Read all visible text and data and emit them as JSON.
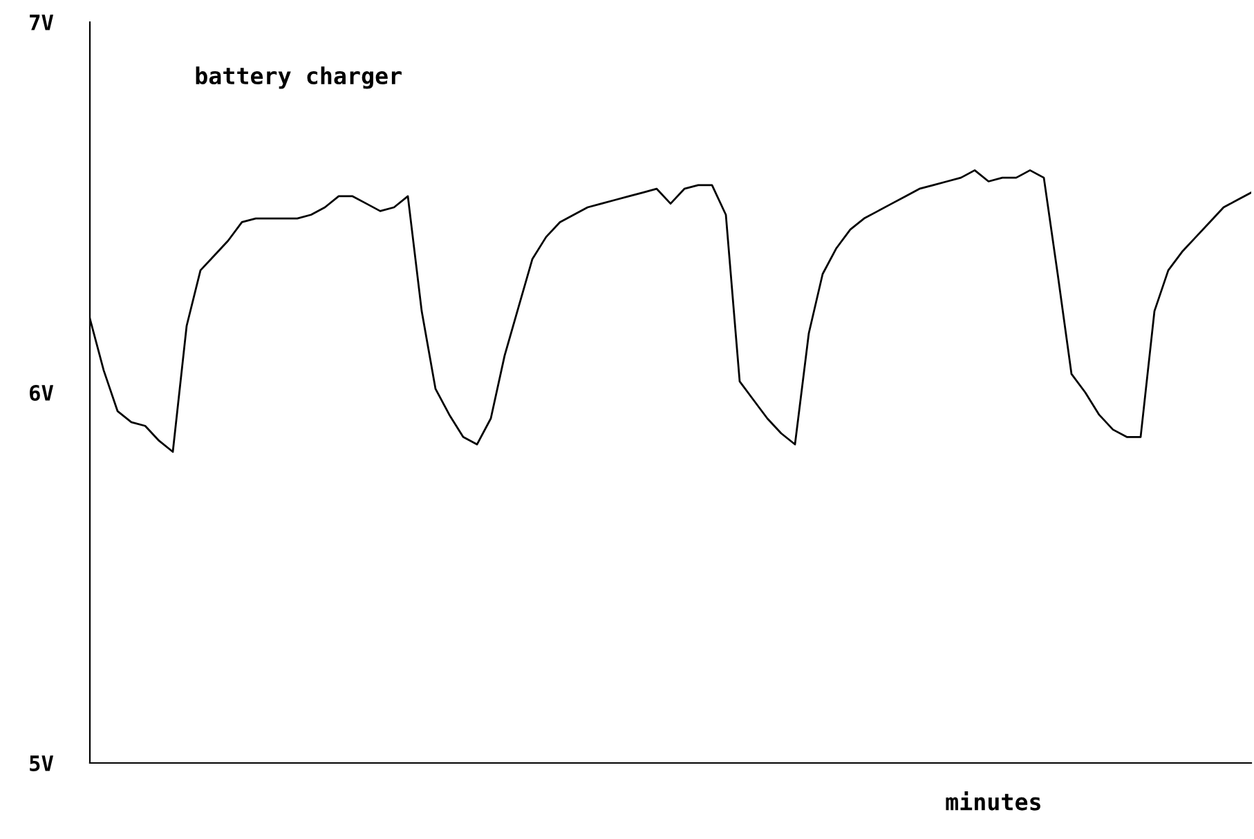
{
  "chart_data": {
    "type": "line",
    "title": "battery charger",
    "xlabel": "minutes",
    "categories": [
      null,
      null,
      null,
      null,
      null,
      null,
      null,
      null,
      null,
      null,
      null,
      null,
      null,
      null,
      null,
      null,
      null,
      null,
      null,
      null,
      null,
      null,
      null,
      null,
      null,
      null,
      null,
      null,
      null,
      null,
      null,
      null,
      null,
      null,
      null,
      null,
      null,
      null,
      null,
      null,
      null,
      null,
      null,
      null,
      null,
      null,
      null,
      null,
      null,
      null,
      null,
      null,
      null,
      null,
      null,
      null,
      null,
      null,
      null,
      null,
      null,
      null,
      null,
      null,
      null,
      null,
      null,
      null,
      null,
      null,
      null,
      null,
      null,
      null,
      null,
      null,
      null,
      null,
      null,
      null,
      null,
      null,
      null,
      null,
      null
    ],
    "series": [
      {
        "color": "#000000",
        "values": [
          6.2,
          6.06,
          5.95,
          5.92,
          5.91,
          5.87,
          5.84,
          6.18,
          6.33,
          6.37,
          6.41,
          6.46,
          6.47,
          6.47,
          6.47,
          6.47,
          6.48,
          6.5,
          6.53,
          6.53,
          6.51,
          6.49,
          6.5,
          6.53,
          6.22,
          6.01,
          5.94,
          5.88,
          5.86,
          5.93,
          6.1,
          6.23,
          6.36,
          6.42,
          6.46,
          6.48,
          6.5,
          6.51,
          6.52,
          6.53,
          6.54,
          6.55,
          6.51,
          6.55,
          6.56,
          6.56,
          6.48,
          6.03,
          5.98,
          5.93,
          5.89,
          5.86,
          6.16,
          6.32,
          6.39,
          6.44,
          6.47,
          6.49,
          6.51,
          6.53,
          6.55,
          6.56,
          6.57,
          6.58,
          6.6,
          6.57,
          6.58,
          6.58,
          6.6,
          6.58,
          6.32,
          6.05,
          6.0,
          5.94,
          5.9,
          5.88,
          5.88,
          6.22,
          6.33,
          6.38,
          6.42,
          6.46,
          6.5,
          6.52,
          6.54
        ]
      }
    ],
    "ylim": [
      5,
      7
    ],
    "yticks": [
      {
        "value": 5,
        "label": "5V"
      },
      {
        "value": 6,
        "label": "6V"
      },
      {
        "value": 7,
        "label": "7V"
      }
    ],
    "tick_labels": "y",
    "grid": false,
    "legend": false,
    "marker": "none",
    "line_style": "solid"
  }
}
